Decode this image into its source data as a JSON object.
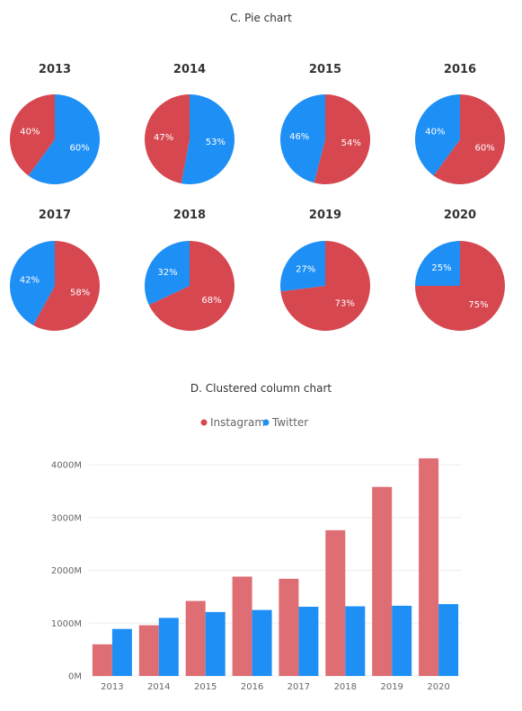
{
  "colors": {
    "instagram": "#D6474F",
    "twitter": "#1E8FF5",
    "instagram_bar": "#DE6D74"
  },
  "pie_panel": {
    "title": "C. Pie chart"
  },
  "column_panel": {
    "title": "D. Clustered column chart"
  },
  "chart_data": [
    {
      "type": "pie",
      "title": "C. Pie chart",
      "pies": [
        {
          "year": "2013",
          "slices": [
            {
              "name": "Twitter",
              "value": 60,
              "label": "60%"
            },
            {
              "name": "Instagram",
              "value": 40,
              "label": "40%"
            }
          ]
        },
        {
          "year": "2014",
          "slices": [
            {
              "name": "Twitter",
              "value": 53,
              "label": "53%"
            },
            {
              "name": "Instagram",
              "value": 47,
              "label": "47%"
            }
          ]
        },
        {
          "year": "2015",
          "slices": [
            {
              "name": "Instagram",
              "value": 54,
              "label": "54%"
            },
            {
              "name": "Twitter",
              "value": 46,
              "label": "46%"
            }
          ]
        },
        {
          "year": "2016",
          "slices": [
            {
              "name": "Instagram",
              "value": 60,
              "label": "60%"
            },
            {
              "name": "Twitter",
              "value": 40,
              "label": "40%"
            }
          ]
        },
        {
          "year": "2017",
          "slices": [
            {
              "name": "Instagram",
              "value": 58,
              "label": "58%"
            },
            {
              "name": "Twitter",
              "value": 42,
              "label": "42%"
            }
          ]
        },
        {
          "year": "2018",
          "slices": [
            {
              "name": "Instagram",
              "value": 68,
              "label": "68%"
            },
            {
              "name": "Twitter",
              "value": 32,
              "label": "32%"
            }
          ]
        },
        {
          "year": "2019",
          "slices": [
            {
              "name": "Instagram",
              "value": 73,
              "label": "73%"
            },
            {
              "name": "Twitter",
              "value": 27,
              "label": "27%"
            }
          ]
        },
        {
          "year": "2020",
          "slices": [
            {
              "name": "Instagram",
              "value": 75,
              "label": "75%"
            },
            {
              "name": "Twitter",
              "value": 25,
              "label": "25%"
            }
          ]
        }
      ]
    },
    {
      "type": "bar",
      "title": "D. Clustered column chart",
      "categories": [
        "2013",
        "2014",
        "2015",
        "2016",
        "2017",
        "2018",
        "2019",
        "2020"
      ],
      "series": [
        {
          "name": "Instagram",
          "values": [
            600,
            960,
            1420,
            1880,
            1840,
            2760,
            3580,
            4120
          ]
        },
        {
          "name": "Twitter",
          "values": [
            890,
            1100,
            1210,
            1250,
            1310,
            1320,
            1330,
            1360
          ]
        }
      ],
      "ylim": [
        0,
        4000
      ],
      "yticks": [
        {
          "value": 0,
          "label": "0M"
        },
        {
          "value": 1000,
          "label": "1000M"
        },
        {
          "value": 2000,
          "label": "2000M"
        },
        {
          "value": 3000,
          "label": "3000M"
        },
        {
          "value": 4000,
          "label": "4000M"
        }
      ],
      "legend": "top",
      "grid": true
    }
  ]
}
